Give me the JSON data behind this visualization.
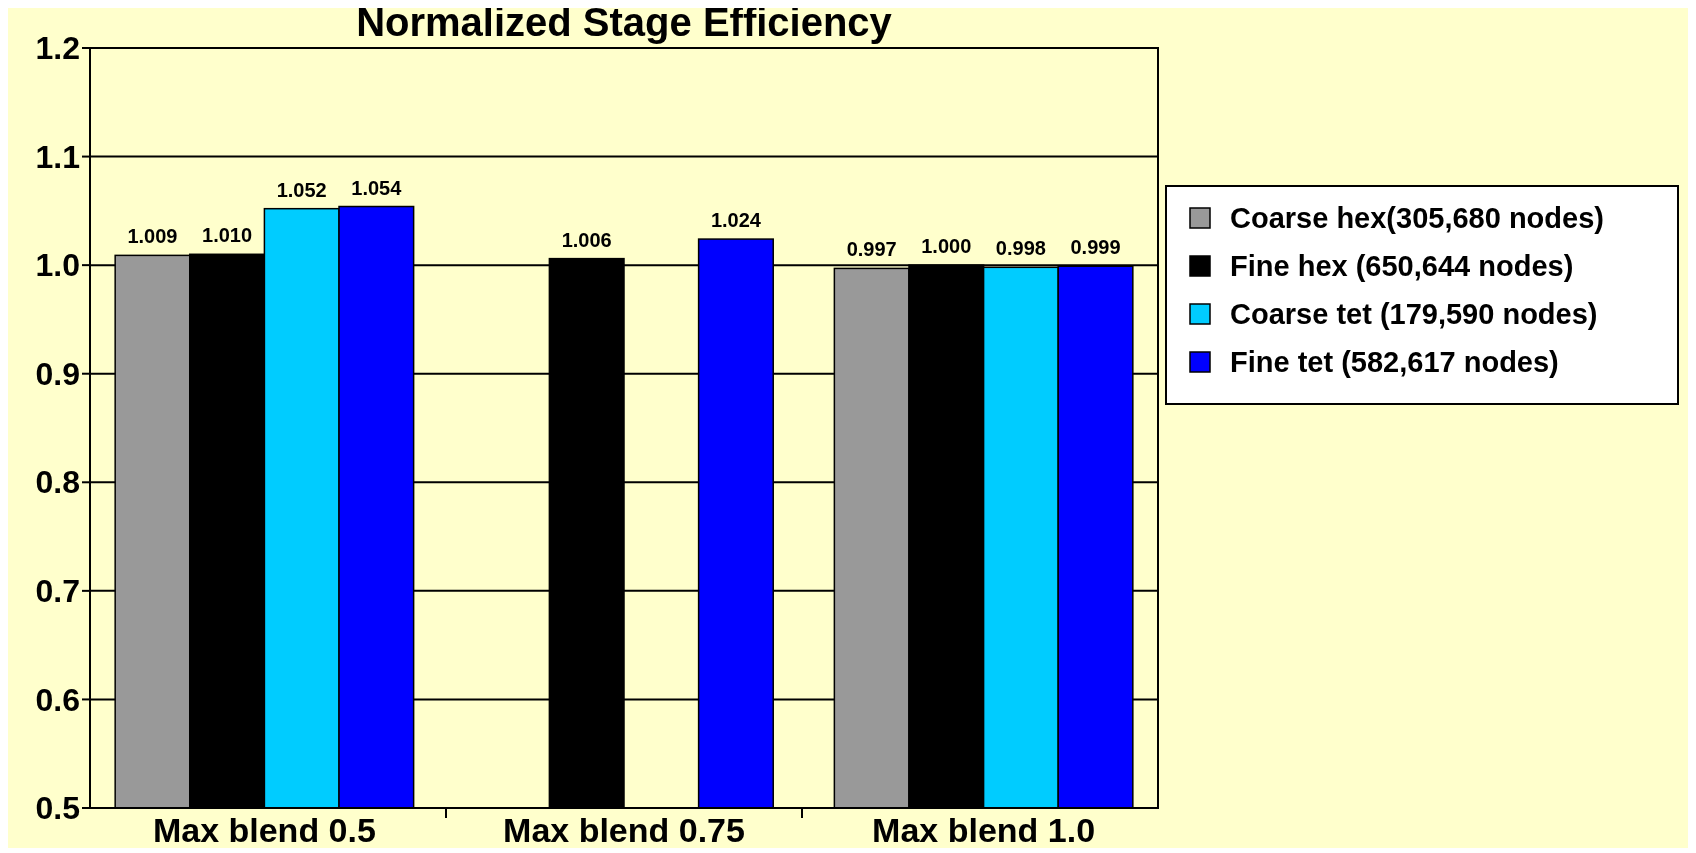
{
  "chart_data": {
    "type": "bar",
    "title": "Normalized Stage Efficiency",
    "categories": [
      "Max blend 0.5",
      "Max blend 0.75",
      "Max blend 1.0"
    ],
    "series": [
      {
        "name": "Coarse hex(305,680 nodes)",
        "color": "#999999",
        "values": [
          1.009,
          null,
          0.997
        ],
        "value_labels": [
          "1.009",
          null,
          "0.997"
        ]
      },
      {
        "name": "Fine hex (650,644 nodes)",
        "color": "#000000",
        "values": [
          1.01,
          1.006,
          1.0
        ],
        "value_labels": [
          "1.010",
          "1.006",
          "1.000"
        ]
      },
      {
        "name": "Coarse tet (179,590 nodes)",
        "color": "#00ccff",
        "values": [
          1.052,
          null,
          0.998
        ],
        "value_labels": [
          "1.052",
          null,
          "0.998"
        ]
      },
      {
        "name": "Fine tet (582,617 nodes)",
        "color": "#0000ff",
        "values": [
          1.054,
          1.024,
          0.999
        ],
        "value_labels": [
          "1.054",
          "1.024",
          "0.999"
        ]
      }
    ],
    "ylim": [
      0.5,
      1.2
    ],
    "yticks": [
      {
        "value": 0.5,
        "label": "0.5"
      },
      {
        "value": 0.6,
        "label": "0.6"
      },
      {
        "value": 0.7,
        "label": "0.7"
      },
      {
        "value": 0.8,
        "label": "0.8"
      },
      {
        "value": 0.9,
        "label": "0.9"
      },
      {
        "value": 1.0,
        "label": "1.0"
      },
      {
        "value": 1.1,
        "label": "1.1"
      },
      {
        "value": 1.2,
        "label": "1.2"
      }
    ],
    "grid": "y",
    "legend": "right"
  }
}
